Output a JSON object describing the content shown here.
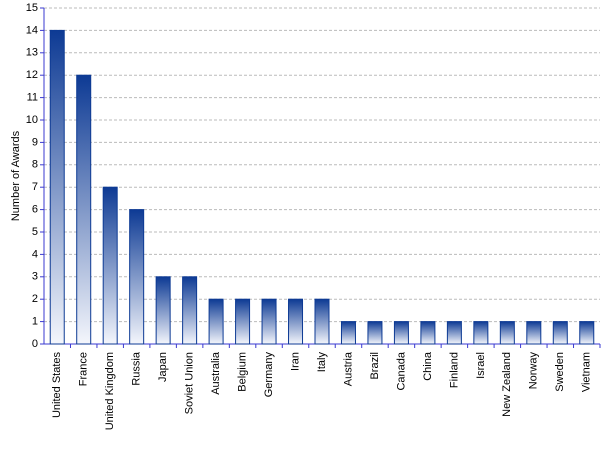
{
  "chart_data": {
    "type": "bar",
    "y_label": "Number of Awards",
    "categories": [
      "United States",
      "France",
      "United Kingdom",
      "Russia",
      "Japan",
      "Soviet Union",
      "Australia",
      "Belgium",
      "Germany",
      "Iran",
      "Italy",
      "Austria",
      "Brazil",
      "Canada",
      "China",
      "Finland",
      "Israel",
      "New Zealand",
      "Norway",
      "Sweden",
      "Vietnam"
    ],
    "values": [
      14,
      12,
      7,
      6,
      3,
      3,
      2,
      2,
      2,
      2,
      2,
      1,
      1,
      1,
      1,
      1,
      1,
      1,
      1,
      1,
      1
    ],
    "color": "#0d3a94",
    "ylim": [
      0,
      15
    ],
    "yticks": [
      0,
      1,
      2,
      3,
      4,
      5,
      6,
      7,
      8,
      9,
      10,
      11,
      12,
      13,
      14,
      15
    ],
    "grid": true
  }
}
